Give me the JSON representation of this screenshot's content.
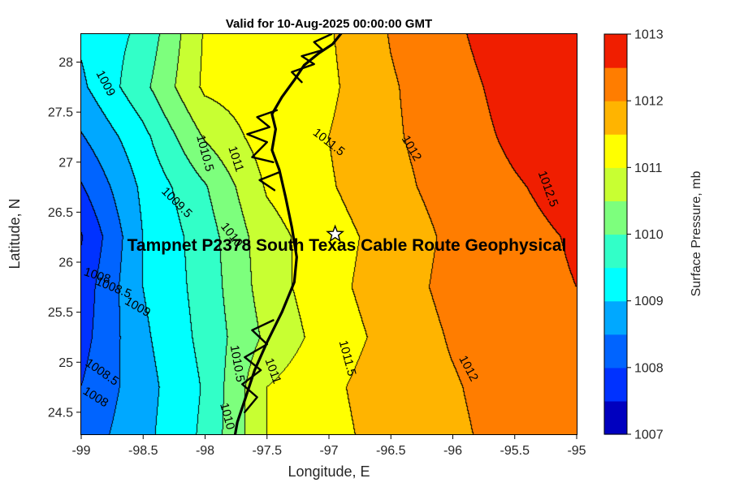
{
  "figure": {
    "title": "Valid for 10-Aug-2025 00:00:00 GMT",
    "xlabel": "Longitude, E",
    "ylabel": "Latitude, N",
    "colorbar_label": "Surface Pressure, mb",
    "annotation": "Tampnet P2378 South Texas Cable Route Geophysical"
  },
  "chart_data": {
    "type": "contour",
    "title": "Valid for 10-Aug-2025 00:00:00 GMT",
    "xlabel": "Longitude, E",
    "ylabel": "Latitude, N",
    "xlim": [
      -99,
      -95
    ],
    "ylim": [
      24.28,
      28.28
    ],
    "grid_on": false,
    "xticks": [
      {
        "v": -99,
        "label": "-99"
      },
      {
        "v": -98.5,
        "label": "-98.5"
      },
      {
        "v": -98,
        "label": "-98"
      },
      {
        "v": -97.5,
        "label": "-97.5"
      },
      {
        "v": -97,
        "label": "-97"
      },
      {
        "v": -96.5,
        "label": "-96.5"
      },
      {
        "v": -96,
        "label": "-96"
      },
      {
        "v": -95.5,
        "label": "-95.5"
      },
      {
        "v": -95,
        "label": "-95"
      }
    ],
    "yticks": [
      {
        "v": 24.5,
        "label": "24.5"
      },
      {
        "v": 25,
        "label": "25"
      },
      {
        "v": 25.5,
        "label": "25.5"
      },
      {
        "v": 26,
        "label": "26"
      },
      {
        "v": 26.5,
        "label": "26.5"
      },
      {
        "v": 27,
        "label": "27"
      },
      {
        "v": 27.5,
        "label": "27.5"
      },
      {
        "v": 28,
        "label": "28"
      }
    ],
    "contour_interval_mb": 0.5,
    "colorbar": {
      "label": "Surface Pressure, mb",
      "min": 1007,
      "max": 1013,
      "step": 0.5,
      "ticks": [
        {
          "v": 1007,
          "label": "1007"
        },
        {
          "v": 1008,
          "label": "1008"
        },
        {
          "v": 1009,
          "label": "1009"
        },
        {
          "v": 1010,
          "label": "1010"
        },
        {
          "v": 1011,
          "label": "1011"
        },
        {
          "v": 1012,
          "label": "1012"
        },
        {
          "v": 1013,
          "label": "1013"
        }
      ],
      "band_colors": [
        "#0000bf",
        "#0032ff",
        "#0064ff",
        "#00a8ff",
        "#00ffff",
        "#32ffc8",
        "#7dff7d",
        "#c8ff32",
        "#ffff00",
        "#ffb400",
        "#ff7d00",
        "#f01e00"
      ]
    },
    "grid": {
      "lons": [
        -99,
        -98.5,
        -98,
        -97.5,
        -97,
        -96.5,
        -96,
        -95.5,
        -95
      ],
      "lats": [
        24.28,
        24.75,
        25.25,
        25.75,
        26.25,
        26.75,
        27.25,
        27.75,
        28.3
      ],
      "pressure_mb": [
        [
          1008.2,
          1008.85,
          1009.6,
          1011.0,
          1011.35,
          1011.7,
          1011.9,
          1012.2,
          1012.35
        ],
        [
          1008.0,
          1008.8,
          1009.55,
          1011.0,
          1011.4,
          1011.75,
          1011.95,
          1012.25,
          1012.4
        ],
        [
          1007.8,
          1008.9,
          1009.65,
          1010.6,
          1011.25,
          1011.65,
          1012.05,
          1012.3,
          1012.45
        ],
        [
          1007.7,
          1009.0,
          1009.7,
          1010.75,
          1011.35,
          1011.75,
          1012.15,
          1012.35,
          1012.5
        ],
        [
          1007.45,
          1009.0,
          1009.75,
          1010.8,
          1011.3,
          1011.7,
          1012.1,
          1012.35,
          1012.55
        ],
        [
          1007.95,
          1009.1,
          1009.95,
          1011.05,
          1011.45,
          1011.85,
          1012.2,
          1012.45,
          1012.7
        ],
        [
          1008.45,
          1009.35,
          1010.55,
          1011.25,
          1011.5,
          1011.93,
          1012.25,
          1012.6,
          1012.9
        ],
        [
          1008.9,
          1009.85,
          1011.1,
          1011.3,
          1011.4,
          1011.95,
          1012.3,
          1012.7,
          1013.0
        ],
        [
          1009.1,
          1009.6,
          1011.05,
          1011.3,
          1011.45,
          1012.03,
          1012.4,
          1012.85,
          1013.2
        ]
      ]
    },
    "contour_labels": [
      {
        "text": "1009",
        "lon": -98.83,
        "lat": 27.77,
        "rot": 62
      },
      {
        "text": "1010.5",
        "lon": -98.03,
        "lat": 27.08,
        "rot": 75
      },
      {
        "text": "1011",
        "lon": -97.78,
        "lat": 27.02,
        "rot": 72
      },
      {
        "text": "1011.5",
        "lon": -97.02,
        "lat": 27.17,
        "rot": 38
      },
      {
        "text": "1012",
        "lon": -96.36,
        "lat": 27.12,
        "rot": 60
      },
      {
        "text": "1012.5",
        "lon": -95.26,
        "lat": 26.72,
        "rot": 70
      },
      {
        "text": "1009.5",
        "lon": -98.25,
        "lat": 26.57,
        "rot": 45
      },
      {
        "text": "1010",
        "lon": -97.81,
        "lat": 26.25,
        "rot": 52
      },
      {
        "text": "1008",
        "lon": -98.88,
        "lat": 25.83,
        "rot": 18
      },
      {
        "text": "1008.5",
        "lon": -98.75,
        "lat": 25.71,
        "rot": 22
      },
      {
        "text": "1009",
        "lon": -98.56,
        "lat": 25.52,
        "rot": 30
      },
      {
        "text": "1008",
        "lon": -98.9,
        "lat": 24.62,
        "rot": 32
      },
      {
        "text": "1008.5",
        "lon": -98.85,
        "lat": 24.87,
        "rot": 35
      },
      {
        "text": "1010",
        "lon": -97.85,
        "lat": 24.45,
        "rot": 75
      },
      {
        "text": "1010.5",
        "lon": -97.77,
        "lat": 24.98,
        "rot": 80
      },
      {
        "text": "1011",
        "lon": -97.48,
        "lat": 24.9,
        "rot": 70
      },
      {
        "text": "1011.5",
        "lon": -96.88,
        "lat": 25.03,
        "rot": 75
      },
      {
        "text": "1012",
        "lon": -95.9,
        "lat": 24.92,
        "rot": 62
      }
    ],
    "coastline": {
      "main": [
        [
          -96.88,
          28.32
        ],
        [
          -96.97,
          28.18
        ],
        [
          -97.08,
          28.09
        ],
        [
          -97.2,
          27.97
        ],
        [
          -97.28,
          27.82
        ],
        [
          -97.38,
          27.65
        ],
        [
          -97.46,
          27.48
        ],
        [
          -97.43,
          27.33
        ],
        [
          -97.46,
          27.12
        ],
        [
          -97.4,
          26.92
        ],
        [
          -97.35,
          26.65
        ],
        [
          -97.3,
          26.35
        ],
        [
          -97.26,
          26.05
        ],
        [
          -97.28,
          25.8
        ],
        [
          -97.38,
          25.5
        ],
        [
          -97.5,
          25.2
        ],
        [
          -97.6,
          24.92
        ],
        [
          -97.68,
          24.62
        ],
        [
          -97.74,
          24.4
        ],
        [
          -97.76,
          24.26
        ]
      ],
      "bays": [
        [
          [
            -96.98,
            28.28
          ],
          [
            -97.12,
            28.2
          ],
          [
            -97.05,
            28.12
          ],
          [
            -97.22,
            28.06
          ],
          [
            -97.12,
            27.98
          ],
          [
            -97.3,
            27.9
          ],
          [
            -97.22,
            27.8
          ]
        ],
        [
          [
            -97.42,
            27.52
          ],
          [
            -97.58,
            27.45
          ],
          [
            -97.48,
            27.35
          ],
          [
            -97.66,
            27.28
          ],
          [
            -97.5,
            27.2
          ],
          [
            -97.62,
            27.05
          ],
          [
            -97.45,
            27.0
          ]
        ],
        [
          [
            -97.4,
            26.9
          ],
          [
            -97.56,
            26.82
          ],
          [
            -97.44,
            26.72
          ]
        ],
        [
          [
            -97.45,
            25.42
          ],
          [
            -97.62,
            25.32
          ],
          [
            -97.5,
            25.18
          ],
          [
            -97.68,
            25.05
          ],
          [
            -97.55,
            24.92
          ],
          [
            -97.7,
            24.78
          ],
          [
            -97.58,
            24.65
          ],
          [
            -97.68,
            24.5
          ]
        ]
      ]
    },
    "station_marker": {
      "shape": "star",
      "lon": -96.95,
      "lat": 26.28
    },
    "annotation": {
      "text": "Tampnet P2378 South Texas Cable Route Geophysical",
      "lon": -96.85,
      "lat": 26.1
    }
  }
}
